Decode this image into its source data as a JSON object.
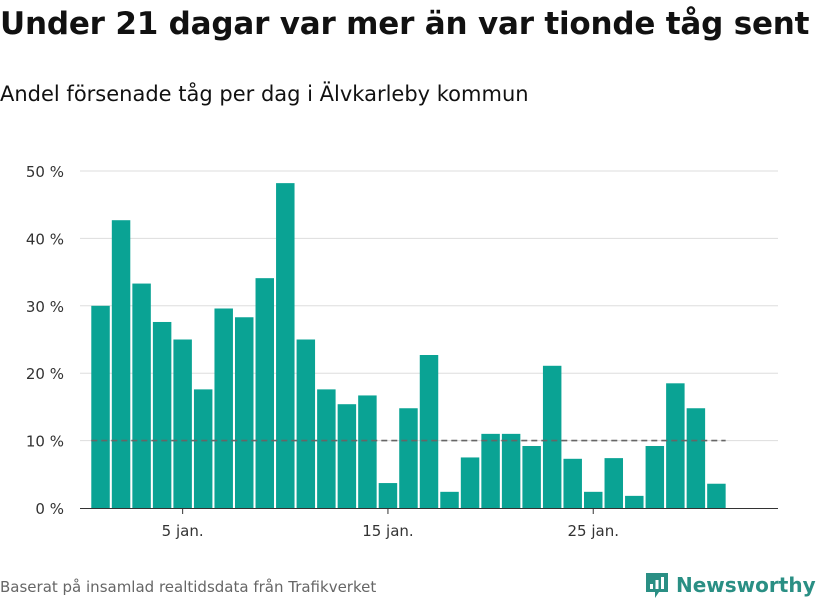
{
  "title": "Under 21 dagar var mer än var tionde tåg sent",
  "subtitle": "Andel försenade tåg per dag i Älvkarleby kommun",
  "caption": "Baserat på insamlad realtidsdata från Trafikverket",
  "brand": {
    "name": "Newsworthy",
    "icon": "newsworthy-logo-icon",
    "color": "#2a8f84"
  },
  "colors": {
    "bar": "#0aa394",
    "reference_line": "#666666",
    "grid": "#dddddd",
    "axis": "#333333"
  },
  "chart_data": {
    "type": "bar",
    "x": [
      1,
      2,
      3,
      4,
      5,
      6,
      7,
      8,
      9,
      10,
      11,
      12,
      13,
      14,
      15,
      16,
      17,
      18,
      19,
      20,
      21,
      22,
      23,
      24,
      25,
      26,
      27,
      28,
      29,
      30,
      31
    ],
    "values": [
      30,
      42.7,
      33.3,
      27.6,
      25,
      17.6,
      29.6,
      28.3,
      34.1,
      48.2,
      25,
      17.6,
      15.4,
      16.7,
      3.7,
      14.8,
      22.7,
      2.4,
      7.5,
      11,
      11,
      9.2,
      21.1,
      7.3,
      2.4,
      7.4,
      1.8,
      9.2,
      18.5,
      14.8,
      3.6
    ],
    "x_ticks": [
      {
        "x": 5,
        "label": "5 jan."
      },
      {
        "x": 15,
        "label": "15 jan."
      },
      {
        "x": 25,
        "label": "25 jan."
      }
    ],
    "y_ticks": [
      {
        "y": 0,
        "label": "0 %"
      },
      {
        "y": 10,
        "label": "10 %"
      },
      {
        "y": 20,
        "label": "20 %"
      },
      {
        "y": 30,
        "label": "30 %"
      },
      {
        "y": 40,
        "label": "40 %"
      },
      {
        "y": 50,
        "label": "50 %"
      }
    ],
    "ylim": [
      0,
      50
    ],
    "xlim": [
      0,
      34
    ],
    "reference_line": 10,
    "grid": true
  }
}
